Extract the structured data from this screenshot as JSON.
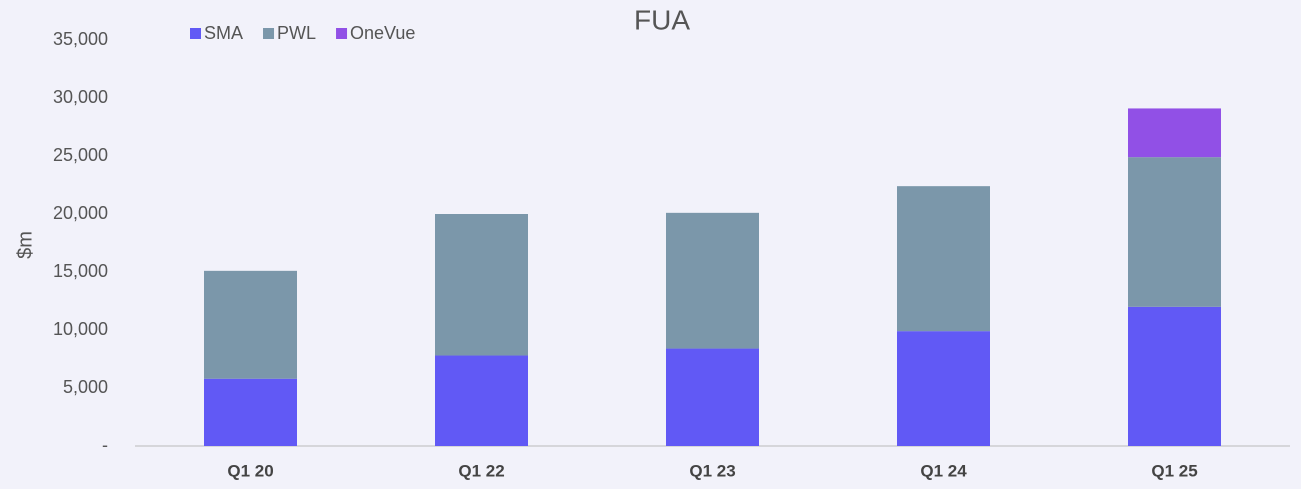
{
  "chart_data": {
    "type": "stacked_bar",
    "title": "FUA",
    "y_label": "$m",
    "categories": [
      "Q1 20",
      "Q1 22",
      "Q1 23",
      "Q1 24",
      "Q1 25"
    ],
    "series": [
      {
        "name": "SMA",
        "color": "#6159f5",
        "values": [
          5800,
          7800,
          8400,
          9900,
          12000
        ]
      },
      {
        "name": "PWL",
        "color": "#7b97aa",
        "values": [
          9300,
          12200,
          11700,
          12500,
          12900
        ]
      },
      {
        "name": "OneVue",
        "color": "#9150e6",
        "values": [
          null,
          null,
          null,
          null,
          4200
        ]
      }
    ],
    "ylim": [
      0,
      35000
    ],
    "yticks": [
      {
        "value": 0,
        "label": "-"
      },
      {
        "value": 5000,
        "label": "5,000"
      },
      {
        "value": 10000,
        "label": "10,000"
      },
      {
        "value": 15000,
        "label": "15,000"
      },
      {
        "value": 20000,
        "label": "20,000"
      },
      {
        "value": 25000,
        "label": "25,000"
      },
      {
        "value": 30000,
        "label": "30,000"
      },
      {
        "value": 35000,
        "label": "35,000"
      }
    ],
    "legend": "top-left",
    "grid": false
  }
}
